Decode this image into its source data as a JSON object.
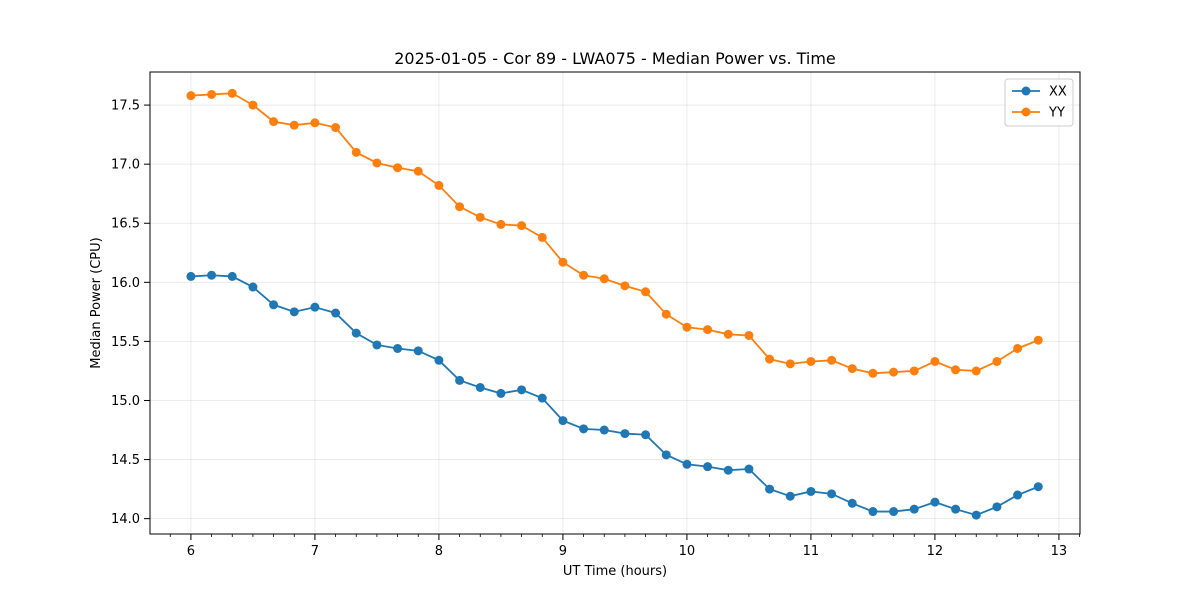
{
  "chart_data": {
    "type": "line",
    "title": "2025-01-05 - Cor 89 - LWA075 - Median Power vs. Time",
    "xlabel": "UT Time (hours)",
    "ylabel": "Median Power (CPU)",
    "xlim": [
      5.67,
      13.17
    ],
    "ylim": [
      13.87,
      17.78
    ],
    "xticks": [
      6,
      7,
      8,
      9,
      10,
      11,
      12,
      13
    ],
    "xtick_labels": [
      "6",
      "7",
      "8",
      "9",
      "10",
      "11",
      "12",
      "13"
    ],
    "yticks": [
      14.0,
      14.5,
      15.0,
      15.5,
      16.0,
      16.5,
      17.0,
      17.5
    ],
    "ytick_labels": [
      "14.0",
      "14.5",
      "15.0",
      "15.5",
      "16.0",
      "16.5",
      "17.0",
      "17.5"
    ],
    "grid": true,
    "legend_position": "top-right",
    "x": [
      6.0,
      6.1667,
      6.3333,
      6.5,
      6.6667,
      6.8333,
      7.0,
      7.1667,
      7.3333,
      7.5,
      7.6667,
      7.8333,
      8.0,
      8.1667,
      8.3333,
      8.5,
      8.6667,
      8.8333,
      9.0,
      9.1667,
      9.3333,
      9.5,
      9.6667,
      9.8333,
      10.0,
      10.1667,
      10.3333,
      10.5,
      10.6667,
      10.8333,
      11.0,
      11.1667,
      11.3333,
      11.5,
      11.6667,
      11.8333,
      12.0,
      12.1667,
      12.3333,
      12.5,
      12.6667,
      12.8333
    ],
    "series": [
      {
        "name": "XX",
        "color": "#1f77b4",
        "values": [
          16.05,
          16.06,
          16.05,
          15.96,
          15.81,
          15.75,
          15.79,
          15.74,
          15.57,
          15.47,
          15.44,
          15.42,
          15.34,
          15.17,
          15.11,
          15.06,
          15.09,
          15.02,
          14.83,
          14.76,
          14.75,
          14.72,
          14.71,
          14.54,
          14.46,
          14.44,
          14.41,
          14.42,
          14.25,
          14.19,
          14.23,
          14.21,
          14.13,
          14.06,
          14.06,
          14.08,
          14.14,
          14.08,
          14.03,
          14.1,
          14.2,
          14.27
        ]
      },
      {
        "name": "YY",
        "color": "#ff7f0e",
        "values": [
          17.58,
          17.59,
          17.6,
          17.5,
          17.36,
          17.33,
          17.35,
          17.31,
          17.1,
          17.01,
          16.97,
          16.94,
          16.82,
          16.64,
          16.55,
          16.49,
          16.48,
          16.38,
          16.17,
          16.06,
          16.03,
          15.97,
          15.92,
          15.73,
          15.62,
          15.6,
          15.56,
          15.55,
          15.35,
          15.31,
          15.33,
          15.34,
          15.27,
          15.23,
          15.24,
          15.25,
          15.33,
          15.26,
          15.25,
          15.33,
          15.44,
          15.51
        ]
      }
    ]
  }
}
